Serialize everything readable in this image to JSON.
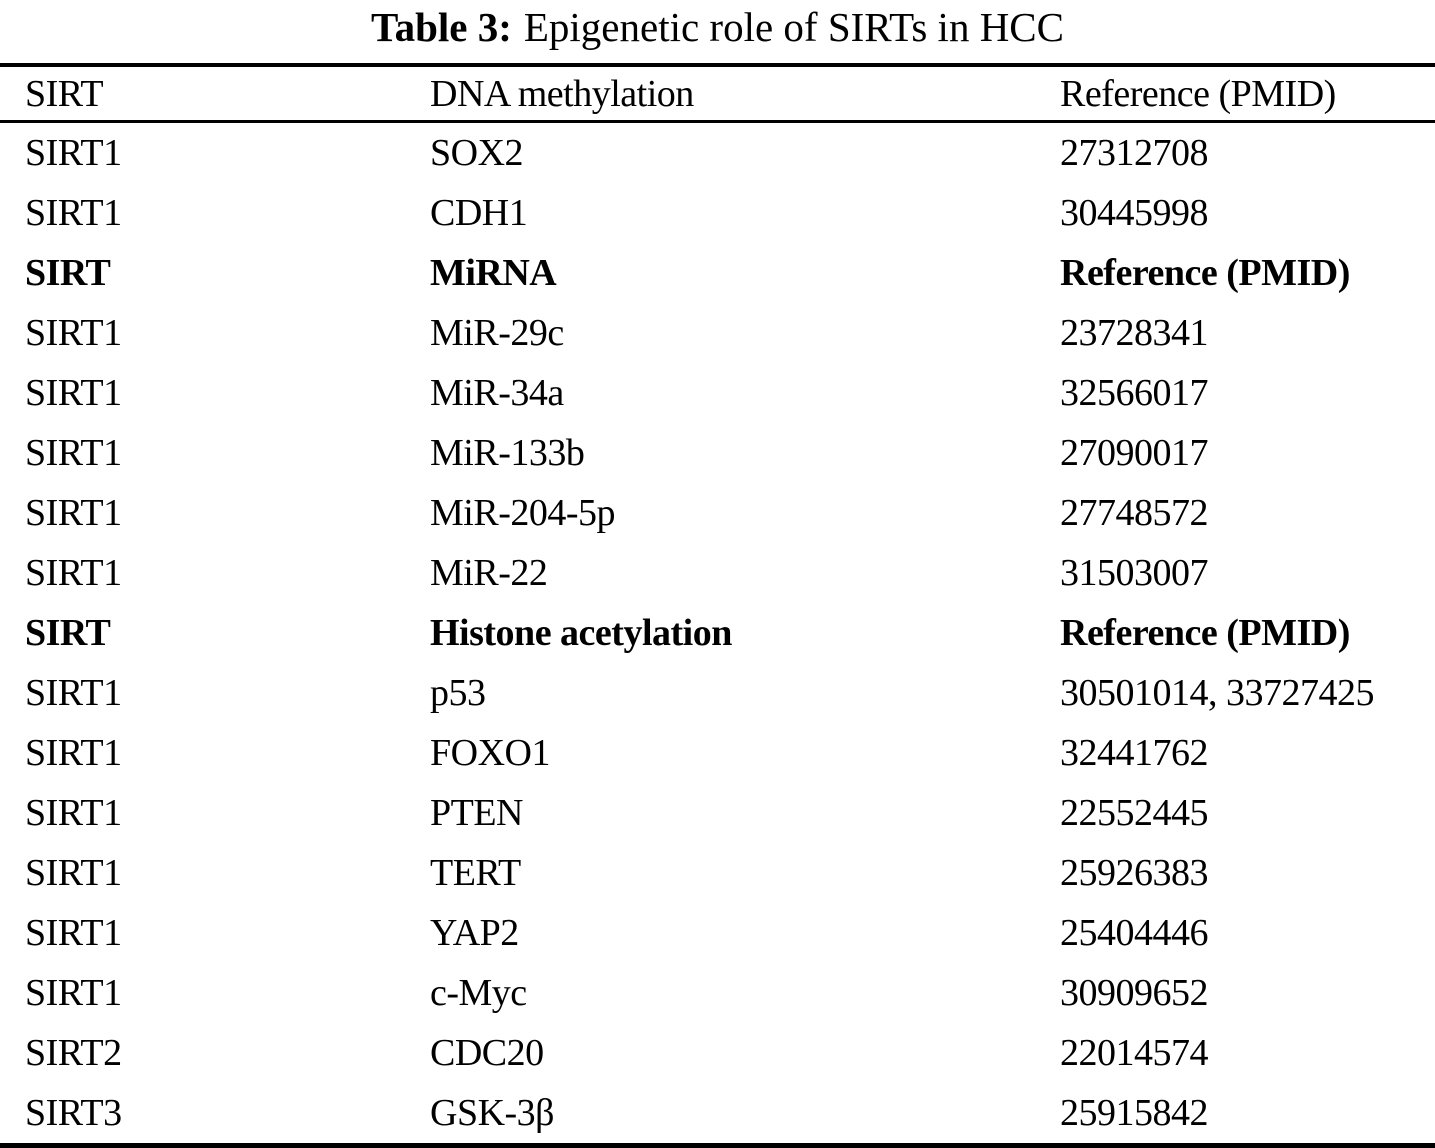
{
  "page": {
    "background_color": "#ffffff",
    "text_color": "#000000"
  },
  "title": {
    "prefix": "Table 3:",
    "text": "Epigenetic role of SIRTs in HCC"
  },
  "table": {
    "columns": {
      "sirt": "SIRT",
      "target": "DNA methylation",
      "reference": "Reference (PMID)"
    },
    "rows": [
      {
        "sirt": "SIRT1",
        "target": "SOX2",
        "reference": "27312708",
        "section_header": false
      },
      {
        "sirt": "SIRT1",
        "target": "CDH1",
        "reference": "30445998",
        "section_header": false
      },
      {
        "sirt": "SIRT",
        "target": "MiRNA",
        "reference": "Reference (PMID)",
        "section_header": true
      },
      {
        "sirt": "SIRT1",
        "target": "MiR-29c",
        "reference": "23728341",
        "section_header": false
      },
      {
        "sirt": "SIRT1",
        "target": "MiR-34a",
        "reference": "32566017",
        "section_header": false
      },
      {
        "sirt": "SIRT1",
        "target": "MiR-133b",
        "reference": "27090017",
        "section_header": false
      },
      {
        "sirt": "SIRT1",
        "target": "MiR-204-5p",
        "reference": "27748572",
        "section_header": false
      },
      {
        "sirt": "SIRT1",
        "target": "MiR-22",
        "reference": "31503007",
        "section_header": false
      },
      {
        "sirt": "SIRT",
        "target": "Histone acetylation",
        "reference": "Reference (PMID)",
        "section_header": true
      },
      {
        "sirt": "SIRT1",
        "target": "p53",
        "reference": "30501014, 33727425",
        "section_header": false
      },
      {
        "sirt": "SIRT1",
        "target": "FOXO1",
        "reference": "32441762",
        "section_header": false
      },
      {
        "sirt": "SIRT1",
        "target": "PTEN",
        "reference": "22552445",
        "section_header": false
      },
      {
        "sirt": "SIRT1",
        "target": "TERT",
        "reference": "25926383",
        "section_header": false
      },
      {
        "sirt": "SIRT1",
        "target": "YAP2",
        "reference": "25404446",
        "section_header": false
      },
      {
        "sirt": "SIRT1",
        "target": "c-Myc",
        "reference": "30909652",
        "section_header": false
      },
      {
        "sirt": "SIRT2",
        "target": "CDC20",
        "reference": "22014574",
        "section_header": false
      },
      {
        "sirt": "SIRT3",
        "target": "GSK-3β",
        "reference": "25915842",
        "section_header": false
      }
    ]
  }
}
